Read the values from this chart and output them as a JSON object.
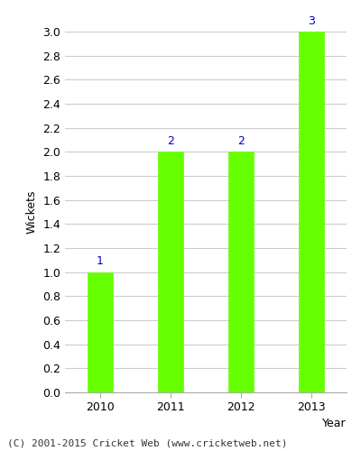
{
  "categories": [
    "2010",
    "2011",
    "2012",
    "2013"
  ],
  "values": [
    1,
    2,
    2,
    3
  ],
  "bar_color": "#66ff00",
  "bar_edge_color": "#66ff00",
  "xlabel": "Year",
  "ylabel": "Wickets",
  "ylim": [
    0,
    3.0
  ],
  "yticks": [
    0.0,
    0.2,
    0.4,
    0.6,
    0.8,
    1.0,
    1.2,
    1.4,
    1.6,
    1.8,
    2.0,
    2.2,
    2.4,
    2.6,
    2.8,
    3.0
  ],
  "annotation_color": "#0000cc",
  "annotation_fontsize": 9,
  "xlabel_fontsize": 9,
  "ylabel_fontsize": 9,
  "tick_fontsize": 9,
  "footer_text": "(C) 2001-2015 Cricket Web (www.cricketweb.net)",
  "footer_fontsize": 8,
  "background_color": "#ffffff",
  "grid_color": "#cccccc",
  "bar_width": 0.35
}
